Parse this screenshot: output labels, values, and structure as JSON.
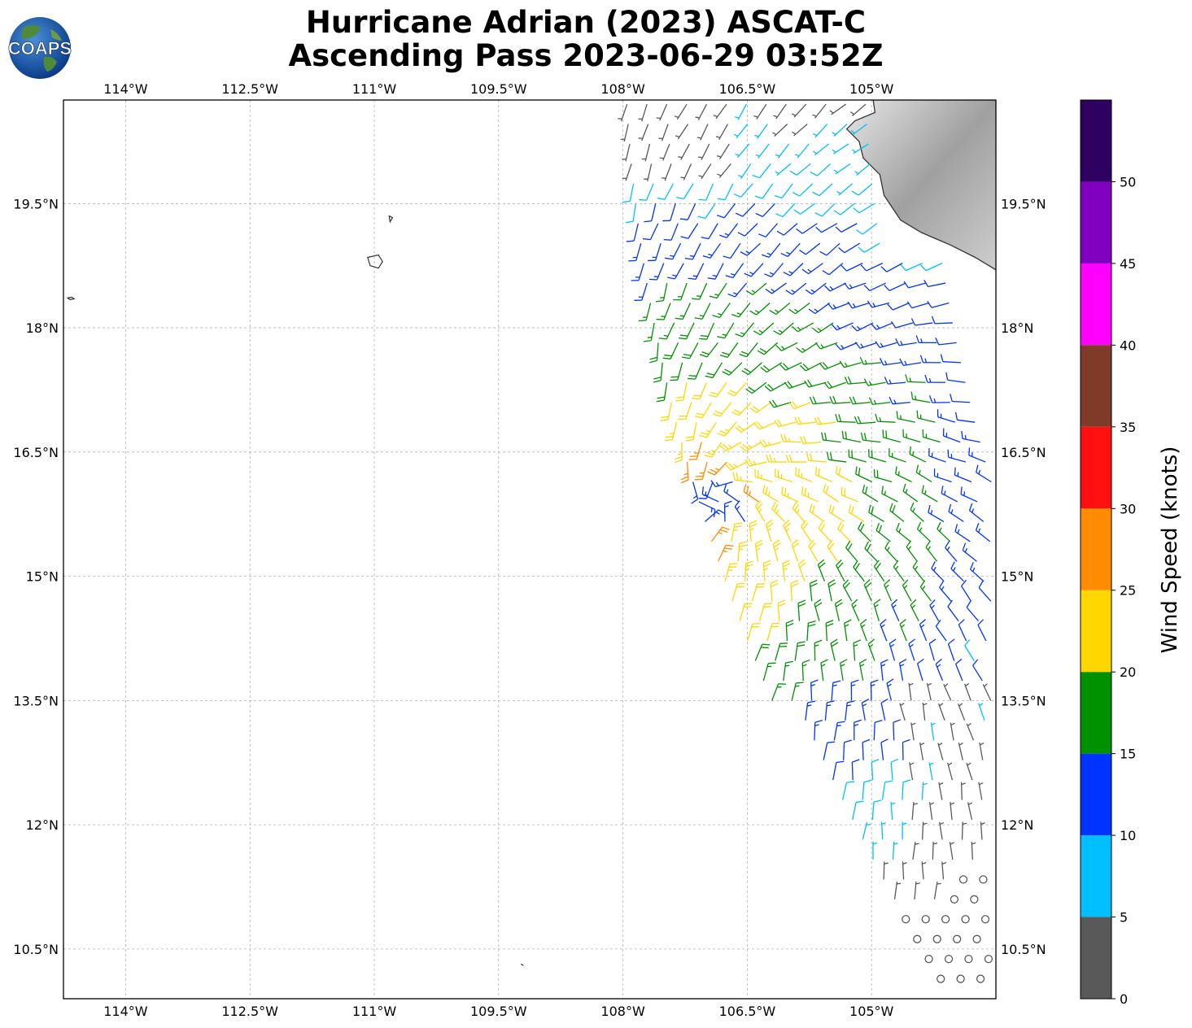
{
  "title_line1": "Hurricane Adrian (2023) ASCAT-C",
  "title_line2": "Ascending Pass 2023-06-29 03:52Z",
  "logo": {
    "text": "COAPS",
    "icon": "globe-logo-icon"
  },
  "map": {
    "lon_range": [
      -114.75,
      -103.5
    ],
    "lat_range": [
      9.9,
      20.75
    ],
    "lon_ticks": [
      {
        "value": -114.0,
        "label": "114°W"
      },
      {
        "value": -112.5,
        "label": "112.5°W"
      },
      {
        "value": -111.0,
        "label": "111°W"
      },
      {
        "value": -109.5,
        "label": "109.5°W"
      },
      {
        "value": -108.0,
        "label": "108°W"
      },
      {
        "value": -106.5,
        "label": "106.5°W"
      },
      {
        "value": -105.0,
        "label": "105°W"
      }
    ],
    "lat_ticks": [
      {
        "value": 10.5,
        "label": "10.5°N"
      },
      {
        "value": 12.0,
        "label": "12°N"
      },
      {
        "value": 13.5,
        "label": "13.5°N"
      },
      {
        "value": 15.0,
        "label": "15°N"
      },
      {
        "value": 16.5,
        "label": "16.5°N"
      },
      {
        "value": 18.0,
        "label": "18°N"
      },
      {
        "value": 19.5,
        "label": "19.5°N"
      }
    ],
    "grid": true,
    "coastline_mexico": [
      [
        -104.98,
        20.75
      ],
      [
        -104.96,
        20.6
      ],
      [
        -105.2,
        20.5
      ],
      [
        -105.3,
        20.4
      ],
      [
        -105.15,
        20.25
      ],
      [
        -105.1,
        20.05
      ],
      [
        -104.9,
        19.85
      ],
      [
        -104.85,
        19.6
      ],
      [
        -104.65,
        19.3
      ],
      [
        -104.4,
        19.15
      ],
      [
        -104.05,
        19.0
      ],
      [
        -103.75,
        18.85
      ],
      [
        -103.5,
        18.7
      ]
    ],
    "islands": [
      {
        "name": "Socorro",
        "points": [
          [
            -111.08,
            18.85
          ],
          [
            -110.95,
            18.88
          ],
          [
            -110.9,
            18.8
          ],
          [
            -110.95,
            18.72
          ],
          [
            -111.05,
            18.75
          ]
        ]
      },
      {
        "name": "San Benedicto",
        "points": [
          [
            -110.82,
            19.35
          ],
          [
            -110.78,
            19.33
          ],
          [
            -110.81,
            19.28
          ]
        ]
      },
      {
        "name": "Clarion",
        "points": [
          [
            -114.7,
            18.36
          ],
          [
            -114.65,
            18.37
          ],
          [
            -114.62,
            18.35
          ],
          [
            -114.67,
            18.34
          ]
        ]
      },
      {
        "name": "Clipperton",
        "points": [
          [
            -109.23,
            10.32
          ],
          [
            -109.2,
            10.3
          ]
        ]
      }
    ]
  },
  "colorbar": {
    "label": "Wind Speed (knots)",
    "min": 0,
    "max": 55,
    "bins": [
      {
        "from": 0,
        "to": 5,
        "color": "#595959"
      },
      {
        "from": 5,
        "to": 10,
        "color": "#00bfff"
      },
      {
        "from": 10,
        "to": 15,
        "color": "#0033ff"
      },
      {
        "from": 15,
        "to": 20,
        "color": "#009100"
      },
      {
        "from": 20,
        "to": 25,
        "color": "#ffd700"
      },
      {
        "from": 25,
        "to": 30,
        "color": "#ff8c00"
      },
      {
        "from": 30,
        "to": 35,
        "color": "#ff1010"
      },
      {
        "from": 35,
        "to": 40,
        "color": "#7f3a28"
      },
      {
        "from": 40,
        "to": 45,
        "color": "#ff00ff"
      },
      {
        "from": 45,
        "to": 50,
        "color": "#8000c0"
      },
      {
        "from": 50,
        "to": 55,
        "color": "#2e0060"
      }
    ],
    "tick_labels": [
      "0",
      "5",
      "10",
      "15",
      "20",
      "25",
      "30",
      "35",
      "40",
      "45",
      "50"
    ]
  }
}
